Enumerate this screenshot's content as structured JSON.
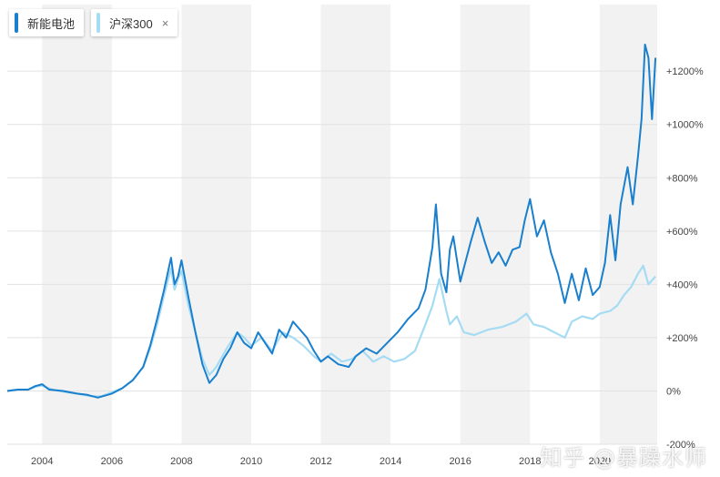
{
  "legend": {
    "items": [
      {
        "label": "新能电池",
        "color": "#1a7fcc"
      },
      {
        "label": "沪深300",
        "color": "#a6dcf3",
        "close_glyph": "×"
      }
    ]
  },
  "watermark": "知乎 @暴躁水师",
  "chart_data": {
    "type": "line",
    "title": "",
    "xlabel": "",
    "ylabel": "",
    "x_range": [
      2003.0,
      2021.65
    ],
    "ylim": [
      -200,
      1450
    ],
    "x_ticks": [
      {
        "value": 2004,
        "label": "2004"
      },
      {
        "value": 2006,
        "label": "2006"
      },
      {
        "value": 2008,
        "label": "2008"
      },
      {
        "value": 2010,
        "label": "2010"
      },
      {
        "value": 2012,
        "label": "2012"
      },
      {
        "value": 2014,
        "label": "2014"
      },
      {
        "value": 2016,
        "label": "2016"
      },
      {
        "value": 2018,
        "label": "2018"
      },
      {
        "value": 2020,
        "label": "2020"
      }
    ],
    "y_ticks": [
      {
        "value": 1200,
        "label": "+1200%"
      },
      {
        "value": 1000,
        "label": "+1000%"
      },
      {
        "value": 800,
        "label": "+800%"
      },
      {
        "value": 600,
        "label": "+600%"
      },
      {
        "value": 400,
        "label": "+400%"
      },
      {
        "value": 200,
        "label": "+200%"
      },
      {
        "value": 0,
        "label": "0%"
      },
      {
        "value": -200,
        "label": "-200%"
      }
    ],
    "grid": true,
    "shaded_year_bands": [
      [
        2004,
        2006
      ],
      [
        2008,
        2010
      ],
      [
        2012,
        2014
      ],
      [
        2016,
        2018
      ],
      [
        2020,
        2021.65
      ]
    ],
    "legend_position": "top-left",
    "series": [
      {
        "name": "新能电池",
        "color": "#1a7fcc",
        "points": [
          [
            2003.0,
            0
          ],
          [
            2003.3,
            5
          ],
          [
            2003.6,
            5
          ],
          [
            2003.8,
            18
          ],
          [
            2004.0,
            25
          ],
          [
            2004.2,
            5
          ],
          [
            2004.6,
            0
          ],
          [
            2005.0,
            -10
          ],
          [
            2005.3,
            -15
          ],
          [
            2005.6,
            -25
          ],
          [
            2006.0,
            -10
          ],
          [
            2006.3,
            10
          ],
          [
            2006.6,
            40
          ],
          [
            2006.9,
            90
          ],
          [
            2007.1,
            170
          ],
          [
            2007.3,
            270
          ],
          [
            2007.5,
            380
          ],
          [
            2007.7,
            500
          ],
          [
            2007.8,
            400
          ],
          [
            2007.9,
            430
          ],
          [
            2008.0,
            490
          ],
          [
            2008.2,
            350
          ],
          [
            2008.4,
            220
          ],
          [
            2008.6,
            100
          ],
          [
            2008.8,
            30
          ],
          [
            2009.0,
            60
          ],
          [
            2009.2,
            120
          ],
          [
            2009.4,
            160
          ],
          [
            2009.6,
            220
          ],
          [
            2009.8,
            180
          ],
          [
            2010.0,
            160
          ],
          [
            2010.2,
            220
          ],
          [
            2010.4,
            180
          ],
          [
            2010.6,
            140
          ],
          [
            2010.8,
            230
          ],
          [
            2011.0,
            200
          ],
          [
            2011.2,
            260
          ],
          [
            2011.4,
            230
          ],
          [
            2011.6,
            200
          ],
          [
            2011.8,
            150
          ],
          [
            2012.0,
            110
          ],
          [
            2012.2,
            130
          ],
          [
            2012.5,
            100
          ],
          [
            2012.8,
            90
          ],
          [
            2013.0,
            130
          ],
          [
            2013.3,
            160
          ],
          [
            2013.6,
            140
          ],
          [
            2013.9,
            180
          ],
          [
            2014.2,
            220
          ],
          [
            2014.5,
            270
          ],
          [
            2014.8,
            310
          ],
          [
            2015.0,
            380
          ],
          [
            2015.2,
            540
          ],
          [
            2015.3,
            700
          ],
          [
            2015.45,
            440
          ],
          [
            2015.6,
            370
          ],
          [
            2015.7,
            530
          ],
          [
            2015.8,
            580
          ],
          [
            2016.0,
            410
          ],
          [
            2016.1,
            460
          ],
          [
            2016.3,
            560
          ],
          [
            2016.5,
            650
          ],
          [
            2016.7,
            560
          ],
          [
            2016.9,
            480
          ],
          [
            2017.1,
            520
          ],
          [
            2017.3,
            470
          ],
          [
            2017.5,
            530
          ],
          [
            2017.7,
            540
          ],
          [
            2017.85,
            640
          ],
          [
            2018.0,
            720
          ],
          [
            2018.2,
            580
          ],
          [
            2018.4,
            640
          ],
          [
            2018.6,
            520
          ],
          [
            2018.8,
            440
          ],
          [
            2019.0,
            330
          ],
          [
            2019.2,
            440
          ],
          [
            2019.4,
            340
          ],
          [
            2019.6,
            460
          ],
          [
            2019.8,
            360
          ],
          [
            2020.0,
            390
          ],
          [
            2020.15,
            480
          ],
          [
            2020.3,
            660
          ],
          [
            2020.45,
            490
          ],
          [
            2020.6,
            700
          ],
          [
            2020.8,
            840
          ],
          [
            2020.95,
            700
          ],
          [
            2021.1,
            880
          ],
          [
            2021.2,
            1020
          ],
          [
            2021.3,
            1300
          ],
          [
            2021.4,
            1250
          ],
          [
            2021.5,
            1020
          ],
          [
            2021.6,
            1250
          ]
        ]
      },
      {
        "name": "沪深300",
        "color": "#a6dcf3",
        "points": [
          [
            2003.0,
            0
          ],
          [
            2003.3,
            5
          ],
          [
            2003.6,
            5
          ],
          [
            2003.8,
            15
          ],
          [
            2004.0,
            20
          ],
          [
            2004.3,
            5
          ],
          [
            2004.7,
            -5
          ],
          [
            2005.0,
            -10
          ],
          [
            2005.4,
            -20
          ],
          [
            2005.7,
            -20
          ],
          [
            2006.0,
            -5
          ],
          [
            2006.3,
            10
          ],
          [
            2006.6,
            40
          ],
          [
            2006.9,
            90
          ],
          [
            2007.1,
            160
          ],
          [
            2007.3,
            250
          ],
          [
            2007.5,
            360
          ],
          [
            2007.7,
            460
          ],
          [
            2007.8,
            380
          ],
          [
            2007.9,
            420
          ],
          [
            2008.0,
            450
          ],
          [
            2008.2,
            320
          ],
          [
            2008.4,
            220
          ],
          [
            2008.6,
            120
          ],
          [
            2008.8,
            60
          ],
          [
            2009.0,
            90
          ],
          [
            2009.3,
            160
          ],
          [
            2009.6,
            220
          ],
          [
            2009.8,
            200
          ],
          [
            2010.0,
            170
          ],
          [
            2010.3,
            200
          ],
          [
            2010.6,
            150
          ],
          [
            2010.9,
            220
          ],
          [
            2011.2,
            200
          ],
          [
            2011.5,
            170
          ],
          [
            2011.8,
            130
          ],
          [
            2012.0,
            110
          ],
          [
            2012.3,
            140
          ],
          [
            2012.6,
            110
          ],
          [
            2012.9,
            120
          ],
          [
            2013.2,
            150
          ],
          [
            2013.5,
            110
          ],
          [
            2013.8,
            130
          ],
          [
            2014.1,
            110
          ],
          [
            2014.4,
            120
          ],
          [
            2014.7,
            150
          ],
          [
            2015.0,
            250
          ],
          [
            2015.2,
            320
          ],
          [
            2015.4,
            420
          ],
          [
            2015.6,
            300
          ],
          [
            2015.7,
            250
          ],
          [
            2015.9,
            280
          ],
          [
            2016.1,
            220
          ],
          [
            2016.4,
            210
          ],
          [
            2016.8,
            230
          ],
          [
            2017.2,
            240
          ],
          [
            2017.6,
            260
          ],
          [
            2017.9,
            290
          ],
          [
            2018.1,
            250
          ],
          [
            2018.4,
            240
          ],
          [
            2018.7,
            220
          ],
          [
            2019.0,
            200
          ],
          [
            2019.2,
            260
          ],
          [
            2019.5,
            280
          ],
          [
            2019.8,
            270
          ],
          [
            2020.0,
            290
          ],
          [
            2020.3,
            300
          ],
          [
            2020.5,
            320
          ],
          [
            2020.7,
            360
          ],
          [
            2020.9,
            390
          ],
          [
            2021.1,
            440
          ],
          [
            2021.25,
            470
          ],
          [
            2021.4,
            400
          ],
          [
            2021.6,
            430
          ]
        ]
      }
    ]
  }
}
